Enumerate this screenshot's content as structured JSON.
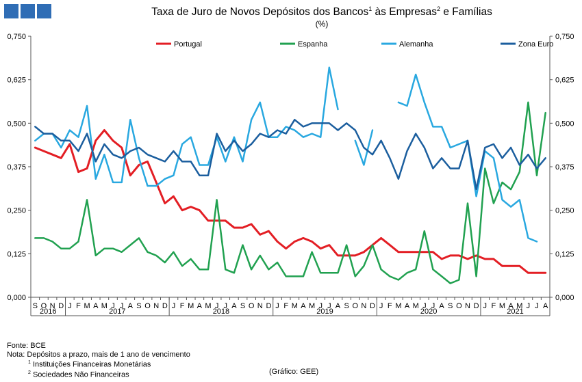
{
  "header": {
    "title_main": "Taxa de Juro de Novos Depósitos dos Bancos",
    "title_fn1": "1",
    "title_mid": " às Empresas",
    "title_fn2": "2",
    "title_end": " e Famílias",
    "subtitle": "(%)"
  },
  "logo": {
    "color": "#2f6db5"
  },
  "footer": {
    "source": "Fonte: BCE",
    "note": "Nota: Depósitos a prazo, mais de 1 ano de vencimento",
    "fn1_mark": "1",
    "fn1_text": " Instituições Financeiras Monetárias",
    "fn2_mark": "2",
    "fn2_text": " Sociedades Não Financeiras",
    "credit": "(Gráfico: GEE)"
  },
  "chart_data": {
    "type": "line",
    "ylim": [
      0,
      0.75
    ],
    "yticks": [
      "0,000",
      "0,125",
      "0,250",
      "0,375",
      "0,500",
      "0,625",
      "0,750"
    ],
    "grid": false,
    "legend_position": "top",
    "categories": [
      "S",
      "O",
      "N",
      "D",
      "J",
      "F",
      "M",
      "A",
      "M",
      "J",
      "J",
      "A",
      "S",
      "O",
      "N",
      "D",
      "J",
      "F",
      "M",
      "A",
      "M",
      "J",
      "J",
      "A",
      "S",
      "O",
      "N",
      "D",
      "J",
      "F",
      "M",
      "A",
      "M",
      "J",
      "J",
      "A",
      "S",
      "O",
      "N",
      "D",
      "J",
      "F",
      "M",
      "A",
      "M",
      "J",
      "J",
      "A",
      "S",
      "O",
      "N",
      "D",
      "J",
      "F",
      "M",
      "A",
      "M",
      "J",
      "J",
      "A"
    ],
    "years": [
      {
        "label": "2016",
        "start": 0,
        "count": 4
      },
      {
        "label": "2017",
        "start": 4,
        "count": 12
      },
      {
        "label": "2018",
        "start": 16,
        "count": 12
      },
      {
        "label": "2019",
        "start": 28,
        "count": 12
      },
      {
        "label": "2020",
        "start": 40,
        "count": 12
      },
      {
        "label": "2021",
        "start": 52,
        "count": 8
      }
    ],
    "series": [
      {
        "name": "Portugal",
        "color": "#e31e24",
        "width": 3,
        "values": [
          0.43,
          0.42,
          0.41,
          0.4,
          0.44,
          0.36,
          0.37,
          0.45,
          0.48,
          0.45,
          0.43,
          0.35,
          0.38,
          0.39,
          0.33,
          0.27,
          0.29,
          0.25,
          0.26,
          0.25,
          0.22,
          0.22,
          0.22,
          0.2,
          0.2,
          0.21,
          0.18,
          0.19,
          0.16,
          0.14,
          0.16,
          0.17,
          0.16,
          0.14,
          0.15,
          0.12,
          0.12,
          0.12,
          0.13,
          0.15,
          0.17,
          0.15,
          0.13,
          0.13,
          0.13,
          0.13,
          0.13,
          0.11,
          0.12,
          0.12,
          0.11,
          0.12,
          0.11,
          0.11,
          0.09,
          0.09,
          0.09,
          0.07,
          0.07,
          0.07
        ]
      },
      {
        "name": "Espanha",
        "color": "#21a150",
        "width": 2.5,
        "values": [
          0.17,
          0.17,
          0.16,
          0.14,
          0.14,
          0.16,
          0.28,
          0.12,
          0.14,
          0.14,
          0.13,
          0.15,
          0.17,
          0.13,
          0.12,
          0.1,
          0.13,
          0.09,
          0.11,
          0.08,
          0.08,
          0.28,
          0.08,
          0.07,
          0.15,
          0.08,
          0.12,
          0.08,
          0.1,
          0.06,
          0.06,
          0.06,
          0.13,
          0.07,
          0.07,
          0.07,
          0.15,
          0.06,
          0.09,
          0.15,
          0.08,
          0.06,
          0.05,
          0.07,
          0.08,
          0.19,
          0.08,
          0.06,
          0.04,
          0.05,
          0.27,
          0.06,
          0.37,
          0.27,
          0.33,
          0.31,
          0.36,
          0.56,
          0.35,
          0.53
        ]
      },
      {
        "name": "Alemanha",
        "color": "#29a8e0",
        "width": 2.5,
        "values": [
          0.45,
          0.47,
          0.47,
          0.43,
          0.48,
          0.46,
          0.55,
          0.34,
          0.41,
          0.33,
          0.33,
          0.51,
          0.4,
          0.32,
          0.32,
          0.34,
          0.35,
          0.44,
          0.46,
          0.38,
          0.38,
          0.46,
          0.39,
          0.46,
          0.39,
          0.51,
          0.56,
          0.46,
          0.46,
          0.49,
          0.48,
          0.46,
          0.47,
          0.46,
          0.66,
          0.54,
          null,
          0.45,
          0.38,
          0.48,
          null,
          null,
          0.56,
          0.55,
          0.64,
          0.56,
          0.49,
          0.49,
          0.43,
          0.44,
          0.45,
          0.29,
          0.42,
          0.4,
          0.28,
          0.26,
          0.28,
          0.17,
          0.16,
          null
        ]
      },
      {
        "name": "Zona Euro",
        "color": "#1b5e9e",
        "width": 2.5,
        "values": [
          0.49,
          0.47,
          0.47,
          0.45,
          0.45,
          0.42,
          0.47,
          0.39,
          0.44,
          0.41,
          0.4,
          0.42,
          0.43,
          0.41,
          0.4,
          0.39,
          0.42,
          0.39,
          0.39,
          0.35,
          0.35,
          0.47,
          0.42,
          0.45,
          0.42,
          0.44,
          0.47,
          0.46,
          0.48,
          0.47,
          0.51,
          0.49,
          0.5,
          0.5,
          0.5,
          0.48,
          0.5,
          0.48,
          0.43,
          0.41,
          0.45,
          0.4,
          0.34,
          0.42,
          0.47,
          0.43,
          0.37,
          0.4,
          0.37,
          0.37,
          0.45,
          0.31,
          0.43,
          0.44,
          0.4,
          0.43,
          0.38,
          0.41,
          0.37,
          0.4
        ]
      }
    ]
  }
}
